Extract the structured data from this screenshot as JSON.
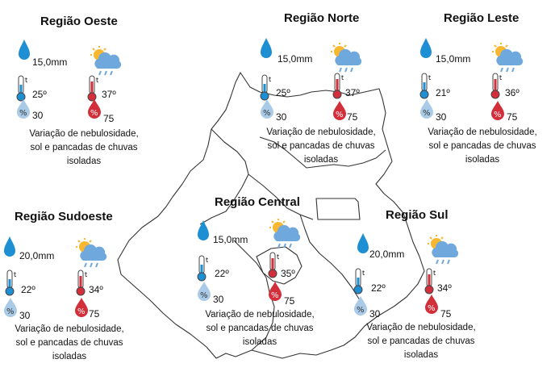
{
  "icons": {
    "precipitation": "raindrop-icon",
    "sky": "sun-cloud-rain-icon",
    "temp_min": "thermometer-cold-icon",
    "temp_max": "thermometer-hot-icon",
    "humidity_min": "humidity-drop-light-icon",
    "humidity_max": "humidity-drop-red-icon"
  },
  "colors": {
    "drop_blue": "#1f8fd4",
    "temp_red": "#d32f3a",
    "humidity_light": "#a9cbe8",
    "map_line": "#333333"
  },
  "regions": {
    "oeste": {
      "name": "Região Oeste",
      "rain": "15,0mm",
      "tmin": "25º",
      "tmax": "37º",
      "umin": "30",
      "umax": "75",
      "d1": "Variação de nebulosidade,",
      "d2": "sol e  pancadas de chuvas",
      "d3": "isoladas"
    },
    "norte": {
      "name": "Região Norte",
      "rain": "15,0mm",
      "tmin": "25º",
      "tmax": "37º",
      "umin": "30",
      "umax": "75",
      "d1": "Variação de nebulosidade,",
      "d2": "sol e  pancadas de chuvas",
      "d3": "isoladas"
    },
    "leste": {
      "name": "Região Leste",
      "rain": "15,0mm",
      "tmin": "21º",
      "tmax": "36º",
      "umin": "30",
      "umax": "75",
      "d1": "Variação de nebulosidade,",
      "d2": "sol e  pancadas de chuvas",
      "d3": "isoladas"
    },
    "sudoeste": {
      "name": "Região Sudoeste",
      "rain": "20,0mm",
      "tmin": "22º",
      "tmax": "34º",
      "umin": "30",
      "umax": "75",
      "d1": "Variação de nebulosidade,",
      "d2": "sol e  pancadas de chuvas",
      "d3": "isoladas"
    },
    "central": {
      "name": "Região Central",
      "rain": "15,0mm",
      "tmin": "22º",
      "tmax": "35º",
      "umin": "30",
      "umax": "75",
      "d1": "Variação de nebulosidade,",
      "d2": "sol e  pancadas de chuvas",
      "d3": "isoladas"
    },
    "sul": {
      "name": "Região Sul",
      "rain": "20,0mm",
      "tmin": "22º",
      "tmax": "34º",
      "umin": "30",
      "umax": "75",
      "d1": "Variação de nebulosidade,",
      "d2": "sol e  pancadas de chuvas",
      "d3": "isoladas"
    }
  }
}
